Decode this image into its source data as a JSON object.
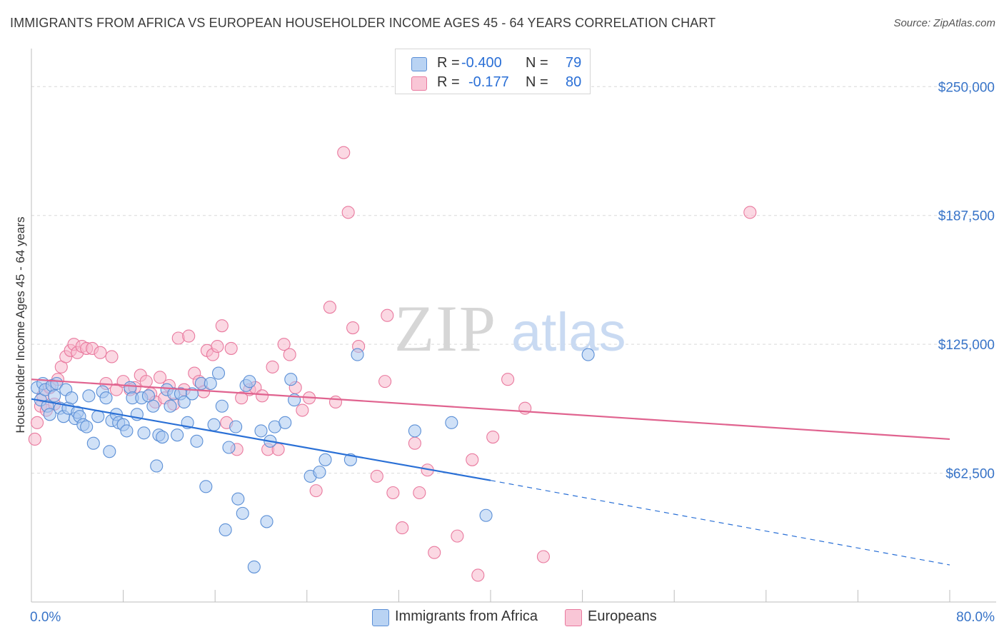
{
  "header": {
    "title": "IMMIGRANTS FROM AFRICA VS EUROPEAN HOUSEHOLDER INCOME AGES 45 - 64 YEARS CORRELATION CHART",
    "source": "Source: ZipAtlas.com"
  },
  "stats_legend": [
    {
      "r_label": "R =",
      "r_value": "-0.400",
      "n_label": "N =",
      "n_value": "79"
    },
    {
      "r_label": "R =",
      "r_value": "-0.177",
      "n_label": "N =",
      "n_value": "80"
    }
  ],
  "bottom_legend": [
    {
      "label": "Immigrants from Africa"
    },
    {
      "label": "Europeans"
    }
  ],
  "watermark": {
    "zip": "ZIP",
    "atlas": "atlas"
  },
  "colors": {
    "africa_fill": "#a9c8f0",
    "africa_stroke": "#5b8fd6",
    "africa_line": "#2a70d6",
    "europe_fill": "#f7b8cc",
    "europe_stroke": "#e9799e",
    "europe_line": "#e0638f",
    "tick_text": "#3874c8",
    "grid": "#d9d9d9"
  },
  "chart_data": {
    "type": "scatter",
    "title": "IMMIGRANTS FROM AFRICA VS EUROPEAN HOUSEHOLDER INCOME AGES 45 - 64 YEARS CORRELATION CHART",
    "xlabel": "",
    "ylabel": "Householder Income Ages 45 - 64 years",
    "xlim": [
      0,
      80
    ],
    "ylim": [
      0,
      265000
    ],
    "x_tick_labels": [
      "0.0%",
      "80.0%"
    ],
    "y_ticks": [
      {
        "value": 62500,
        "label": "$62,500"
      },
      {
        "value": 125000,
        "label": "$125,000"
      },
      {
        "value": 187500,
        "label": "$187,500"
      },
      {
        "value": 250000,
        "label": "$250,000"
      }
    ],
    "grid": "horizontal dashed",
    "legend_placement": "top-center",
    "series": [
      {
        "name": "Immigrants from Africa",
        "r": -0.4,
        "n": 79,
        "trend": {
          "x": [
            0,
            40
          ],
          "y": [
            98500,
            59000
          ],
          "dashed_to": [
            80,
            18000
          ]
        },
        "points": [
          [
            0.5,
            104000
          ],
          [
            0.8,
            98000
          ],
          [
            1.0,
            106000
          ],
          [
            1.2,
            103000
          ],
          [
            1.4,
            95000
          ],
          [
            1.6,
            91000
          ],
          [
            1.8,
            105000
          ],
          [
            2.0,
            100000
          ],
          [
            2.2,
            106000
          ],
          [
            2.5,
            94000
          ],
          [
            2.8,
            90000
          ],
          [
            3.0,
            103000
          ],
          [
            3.2,
            94000
          ],
          [
            3.5,
            99000
          ],
          [
            3.8,
            89000
          ],
          [
            4.0,
            92000
          ],
          [
            4.2,
            90000
          ],
          [
            4.5,
            86000
          ],
          [
            4.8,
            85000
          ],
          [
            5.0,
            100000
          ],
          [
            5.4,
            77000
          ],
          [
            5.8,
            90000
          ],
          [
            6.2,
            102000
          ],
          [
            6.5,
            99000
          ],
          [
            6.8,
            73000
          ],
          [
            7.0,
            88000
          ],
          [
            7.4,
            91000
          ],
          [
            7.6,
            87000
          ],
          [
            8.0,
            86000
          ],
          [
            8.3,
            83000
          ],
          [
            8.6,
            104000
          ],
          [
            8.8,
            99000
          ],
          [
            9.2,
            91000
          ],
          [
            9.6,
            99000
          ],
          [
            9.8,
            82000
          ],
          [
            10.2,
            100000
          ],
          [
            10.6,
            95000
          ],
          [
            10.9,
            66000
          ],
          [
            11.1,
            81000
          ],
          [
            11.4,
            80000
          ],
          [
            11.8,
            103000
          ],
          [
            12.1,
            95000
          ],
          [
            12.4,
            101000
          ],
          [
            12.7,
            81000
          ],
          [
            13.0,
            101000
          ],
          [
            13.3,
            97000
          ],
          [
            13.6,
            87000
          ],
          [
            14.0,
            101000
          ],
          [
            14.4,
            78000
          ],
          [
            14.8,
            106000
          ],
          [
            15.2,
            56000
          ],
          [
            15.6,
            106000
          ],
          [
            15.9,
            86000
          ],
          [
            16.3,
            111000
          ],
          [
            16.6,
            95000
          ],
          [
            16.9,
            35000
          ],
          [
            17.2,
            75000
          ],
          [
            17.8,
            85000
          ],
          [
            18.0,
            50000
          ],
          [
            18.4,
            43000
          ],
          [
            18.7,
            105000
          ],
          [
            19.0,
            107000
          ],
          [
            19.4,
            17000
          ],
          [
            20.0,
            83000
          ],
          [
            20.5,
            39000
          ],
          [
            20.8,
            78000
          ],
          [
            21.2,
            85000
          ],
          [
            22.1,
            87000
          ],
          [
            22.6,
            108000
          ],
          [
            22.9,
            98000
          ],
          [
            24.3,
            61000
          ],
          [
            25.1,
            63000
          ],
          [
            25.6,
            69000
          ],
          [
            27.8,
            69000
          ],
          [
            28.4,
            120000
          ],
          [
            33.4,
            83000
          ],
          [
            36.6,
            87000
          ],
          [
            39.6,
            42000
          ],
          [
            48.5,
            120000
          ]
        ]
      },
      {
        "name": "Europeans",
        "r": -0.177,
        "n": 80,
        "trend": {
          "x": [
            0,
            80
          ],
          "y": [
            108000,
            79000
          ]
        },
        "points": [
          [
            0.3,
            79000
          ],
          [
            0.5,
            87000
          ],
          [
            0.8,
            95000
          ],
          [
            1.0,
            100000
          ],
          [
            1.3,
            93000
          ],
          [
            1.6,
            104000
          ],
          [
            2.0,
            96000
          ],
          [
            2.3,
            108000
          ],
          [
            2.6,
            114000
          ],
          [
            3.0,
            119000
          ],
          [
            3.4,
            122000
          ],
          [
            3.7,
            125000
          ],
          [
            4.0,
            121000
          ],
          [
            4.4,
            124000
          ],
          [
            4.8,
            123000
          ],
          [
            5.3,
            123000
          ],
          [
            6.0,
            121000
          ],
          [
            6.5,
            106000
          ],
          [
            7.0,
            119000
          ],
          [
            7.4,
            103000
          ],
          [
            8.0,
            107000
          ],
          [
            8.6,
            103000
          ],
          [
            9.0,
            104000
          ],
          [
            9.5,
            110000
          ],
          [
            10.0,
            107000
          ],
          [
            10.4,
            101000
          ],
          [
            10.8,
            97000
          ],
          [
            11.2,
            109000
          ],
          [
            11.6,
            99000
          ],
          [
            12.0,
            105000
          ],
          [
            12.4,
            96000
          ],
          [
            12.8,
            128000
          ],
          [
            13.3,
            103000
          ],
          [
            13.7,
            129000
          ],
          [
            14.2,
            111000
          ],
          [
            14.6,
            107000
          ],
          [
            15.0,
            102000
          ],
          [
            15.3,
            122000
          ],
          [
            15.8,
            120000
          ],
          [
            16.2,
            124000
          ],
          [
            16.6,
            134000
          ],
          [
            17.0,
            87000
          ],
          [
            17.4,
            123000
          ],
          [
            17.9,
            74000
          ],
          [
            18.3,
            99000
          ],
          [
            19.0,
            103000
          ],
          [
            19.5,
            104000
          ],
          [
            20.1,
            100000
          ],
          [
            20.6,
            74000
          ],
          [
            21.0,
            114000
          ],
          [
            21.5,
            74000
          ],
          [
            22.0,
            125000
          ],
          [
            22.5,
            120000
          ],
          [
            23.0,
            104000
          ],
          [
            23.6,
            93000
          ],
          [
            24.2,
            99000
          ],
          [
            24.8,
            54000
          ],
          [
            26.0,
            143000
          ],
          [
            26.5,
            97000
          ],
          [
            27.2,
            218000
          ],
          [
            27.6,
            189000
          ],
          [
            28.0,
            133000
          ],
          [
            28.5,
            124000
          ],
          [
            30.1,
            61000
          ],
          [
            30.8,
            107000
          ],
          [
            31.0,
            139000
          ],
          [
            31.5,
            53000
          ],
          [
            32.3,
            36000
          ],
          [
            33.4,
            77000
          ],
          [
            33.8,
            53000
          ],
          [
            34.5,
            64000
          ],
          [
            35.1,
            24000
          ],
          [
            37.1,
            32000
          ],
          [
            38.4,
            69000
          ],
          [
            38.9,
            13000
          ],
          [
            40.2,
            80000
          ],
          [
            41.5,
            108000
          ],
          [
            43.0,
            94000
          ],
          [
            44.6,
            22000
          ],
          [
            62.6,
            189000
          ]
        ]
      }
    ]
  }
}
